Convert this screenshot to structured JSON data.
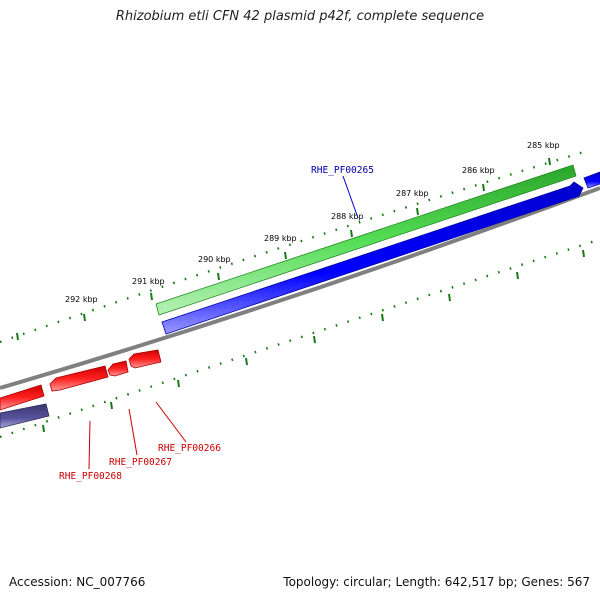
{
  "title": "Rhizobium etli CFN 42 plasmid p42f, complete sequence",
  "footer": {
    "accession": "Accession: NC_007766",
    "summary": "Topology: circular; Length: 642,517 bp; Genes: 567"
  },
  "ticks": [
    "292 kbp",
    "291 kbp",
    "290 kbp",
    "289 kbp",
    "288 kbp",
    "287 kbp",
    "286 kbp",
    "285 kbp"
  ],
  "genes": {
    "forward": [
      "RHE_PF00265"
    ],
    "reverse": [
      "RHE_PF00266",
      "RHE_PF00267",
      "RHE_PF00268"
    ]
  },
  "colors": {
    "green": "#33cc33",
    "blue": "#0000ee",
    "red": "#ff1111",
    "slate": "#4b4a8f",
    "backbone": "#808080",
    "tick": "#1a7a1a",
    "forward_label": "#0000aa",
    "reverse_label": "#cc0000"
  }
}
